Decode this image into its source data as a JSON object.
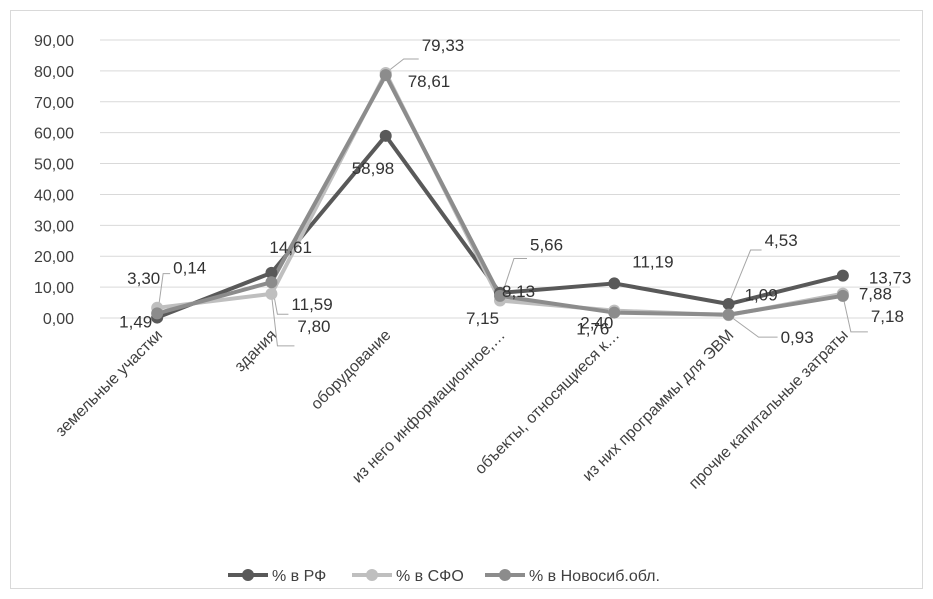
{
  "chart_data": {
    "type": "line",
    "categories": [
      "земельные участки",
      "здания",
      "оборудование",
      "из него информационное,…",
      "объекты, относящиеся к…",
      "из них программы для ЭВМ",
      "прочие капитальные затраты"
    ],
    "series": [
      {
        "name": "% в РФ",
        "color": "#595959",
        "values": [
          0.14,
          14.61,
          58.98,
          8.13,
          11.19,
          4.53,
          13.73
        ],
        "labels": [
          "0,14",
          "14,61",
          "58,98",
          "8,13",
          "11,19",
          "4,53",
          "13,73"
        ]
      },
      {
        "name": "% в СФО",
        "color": "#bfbfbf",
        "values": [
          3.3,
          7.8,
          79.33,
          5.66,
          2.4,
          0.93,
          7.88
        ],
        "labels": [
          "3,30",
          "7,80",
          "79,33",
          "5,66",
          "2,40",
          "0,93",
          "7,88"
        ]
      },
      {
        "name": "% в Новосиб.обл.",
        "color": "#8c8c8c",
        "values": [
          1.49,
          11.59,
          78.61,
          7.15,
          1.76,
          1.09,
          7.18
        ],
        "labels": [
          "1,49",
          "11,59",
          "78,61",
          "7,15",
          "1,76",
          "1,09",
          "7,18"
        ]
      }
    ],
    "yticks": [
      "0,00",
      "10,00",
      "20,00",
      "30,00",
      "40,00",
      "50,00",
      "60,00",
      "70,00",
      "80,00",
      "90,00"
    ],
    "ylim": [
      0,
      90
    ],
    "grid": true,
    "legend_position": "bottom"
  }
}
